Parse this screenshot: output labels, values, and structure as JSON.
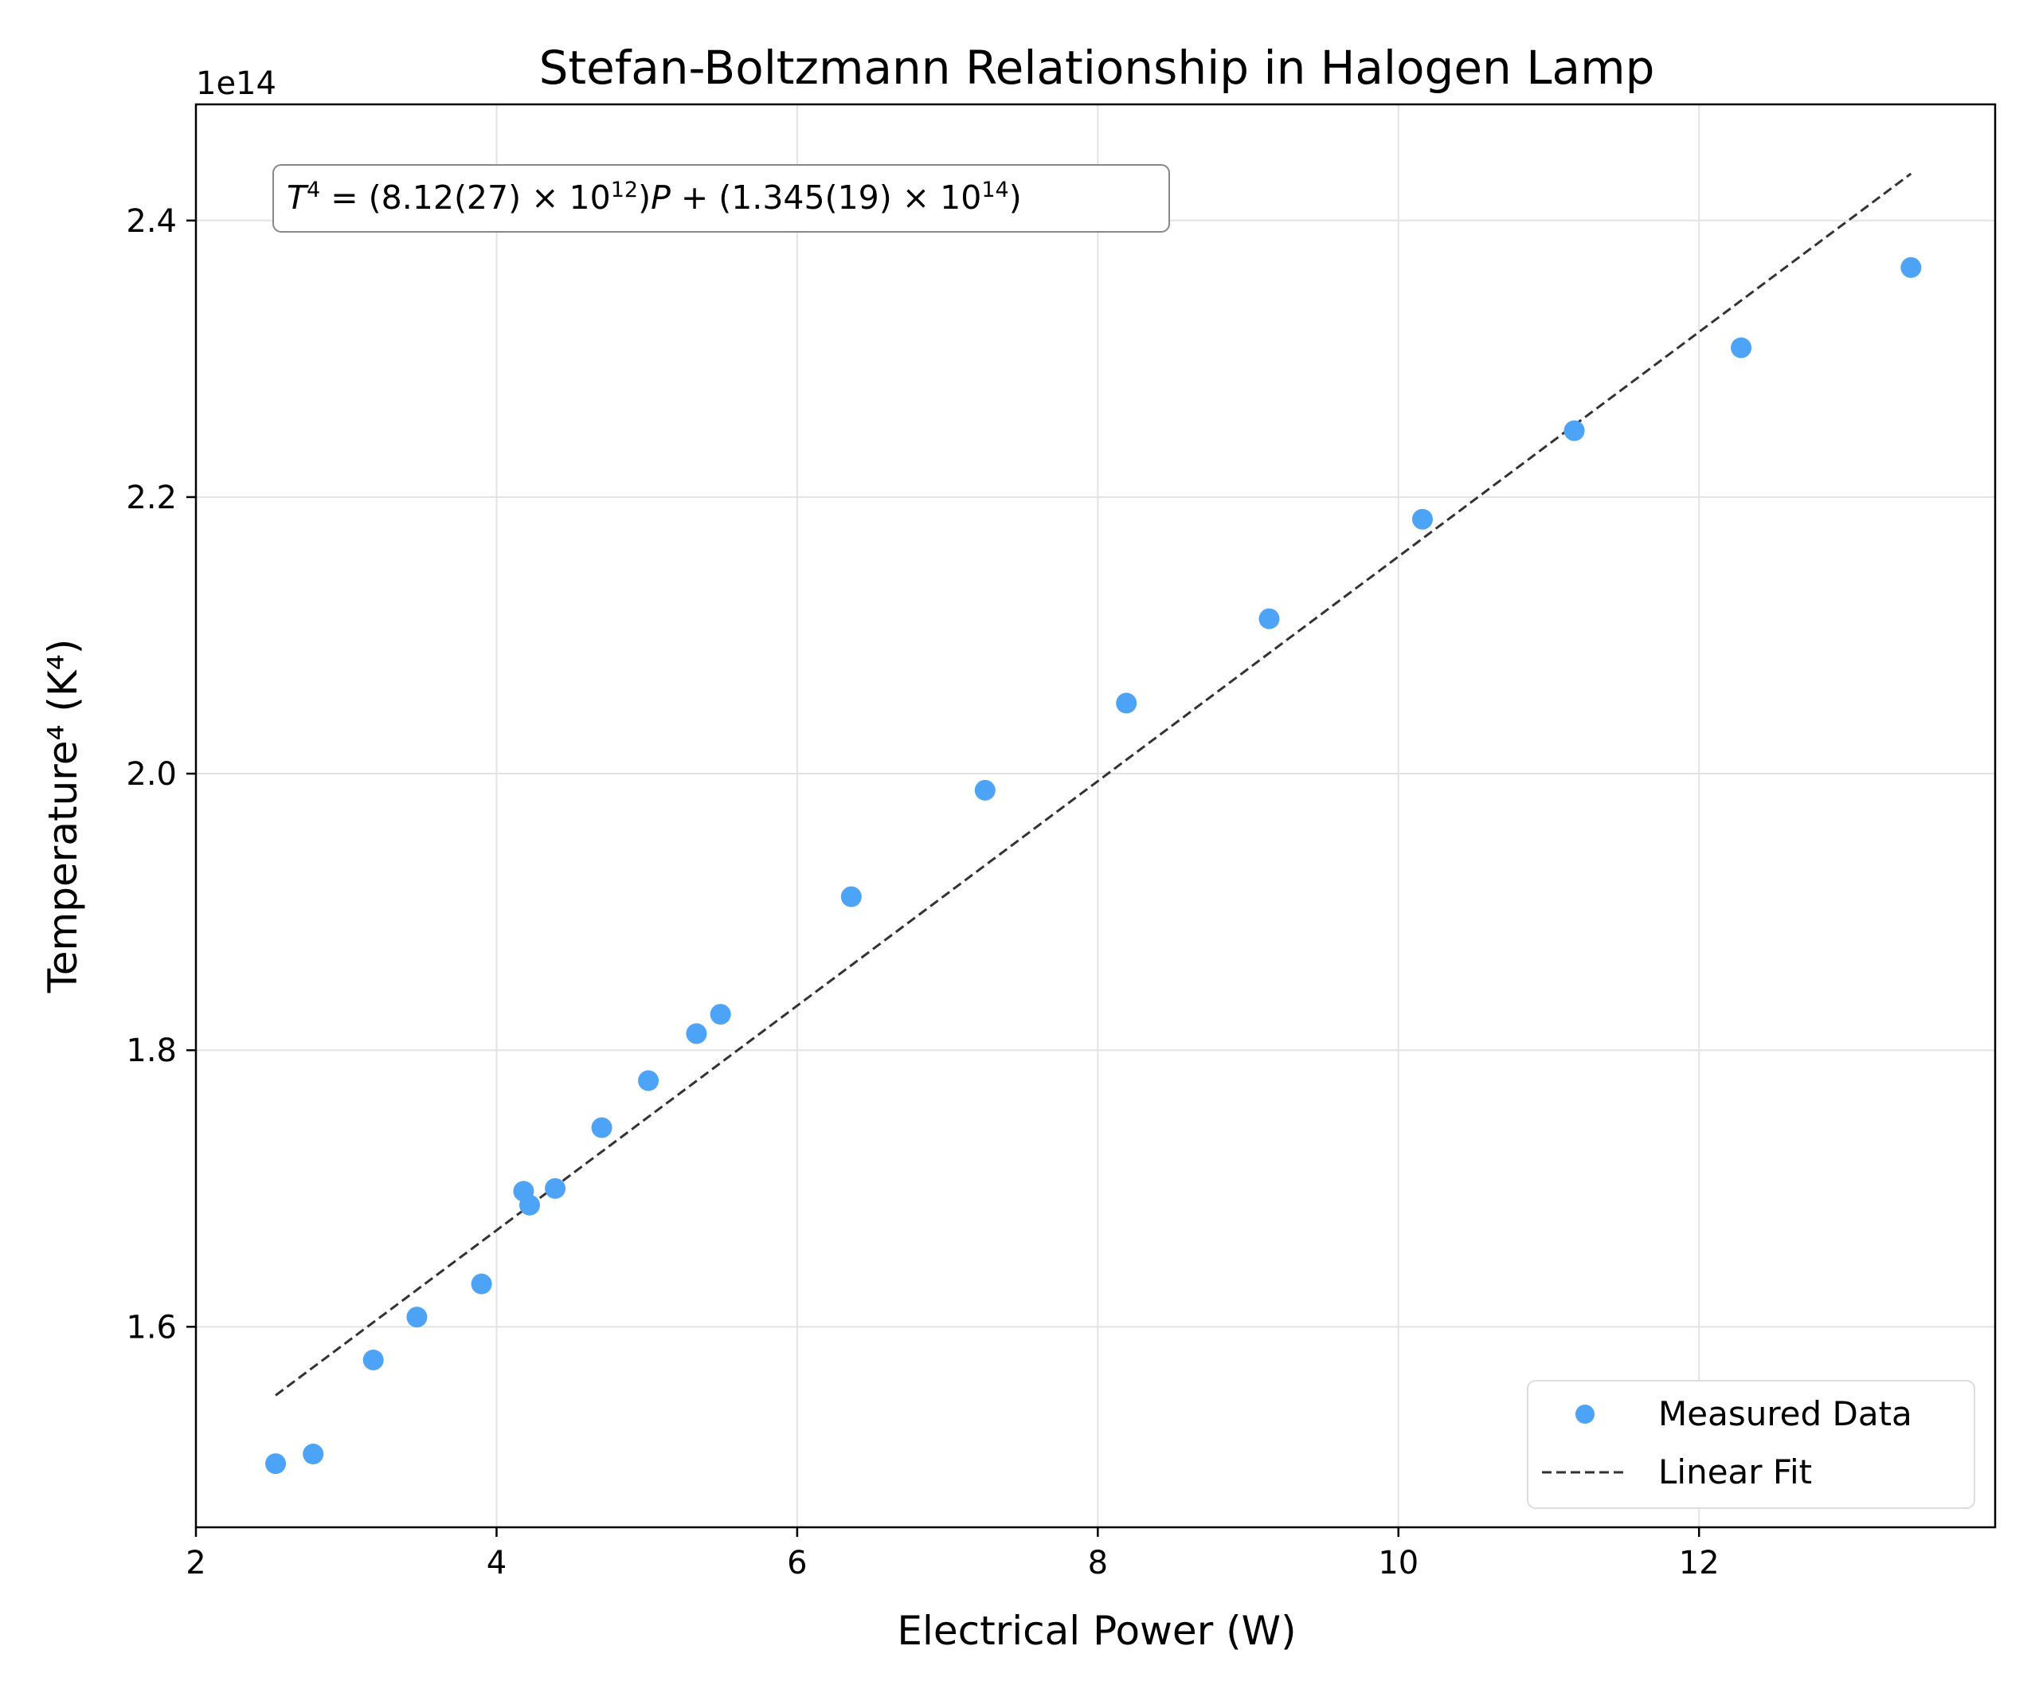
{
  "chart_data": {
    "type": "scatter",
    "title": "Stefan-Boltzmann Relationship in Halogen Lamp",
    "xlabel": "Electrical Power (W)",
    "ylabel": "Temperature⁴ (K⁴)",
    "y_offset_label": "1e14",
    "y_scale_factor": 100000000000000.0,
    "xlim": [
      2.0,
      13.97
    ],
    "ylim": [
      1.455,
      2.484
    ],
    "x_ticks": [
      2,
      4,
      6,
      8,
      10,
      12
    ],
    "x_tick_labels": [
      "2",
      "4",
      "6",
      "8",
      "10",
      "12"
    ],
    "y_ticks": [
      1.6,
      1.8,
      2.0,
      2.2,
      2.4
    ],
    "y_tick_labels": [
      "1.6",
      "1.8",
      "2.0",
      "2.2",
      "2.4"
    ],
    "grid": true,
    "legend_position": "lower-right",
    "annotation": {
      "lhs": "T",
      "lhs_exp": "4",
      "middle_1": " = (8.12(27) × 10",
      "exp_1": "12",
      "middle_2": ")",
      "var": "P",
      "middle_3": " + (1.345(19) × 10",
      "exp_2": "14",
      "end": ")"
    },
    "series": [
      {
        "name": "Measured Data",
        "kind": "scatter",
        "color": "#4da3f5",
        "x": [
          2.53,
          2.78,
          3.18,
          3.47,
          3.9,
          4.18,
          4.22,
          4.39,
          4.7,
          5.01,
          5.33,
          5.49,
          6.36,
          7.25,
          8.19,
          9.14,
          10.16,
          11.17,
          12.28,
          13.41
        ],
        "y": [
          1.501,
          1.508,
          1.576,
          1.607,
          1.631,
          1.698,
          1.688,
          1.7,
          1.744,
          1.778,
          1.812,
          1.826,
          1.911,
          1.988,
          2.051,
          2.112,
          2.184,
          2.248,
          2.308,
          2.366
        ]
      },
      {
        "name": "Linear Fit",
        "kind": "line",
        "style": "dashed",
        "color": "#333333",
        "x": [
          2.53,
          13.41
        ],
        "y": [
          1.5504,
          2.4339
        ]
      }
    ]
  }
}
